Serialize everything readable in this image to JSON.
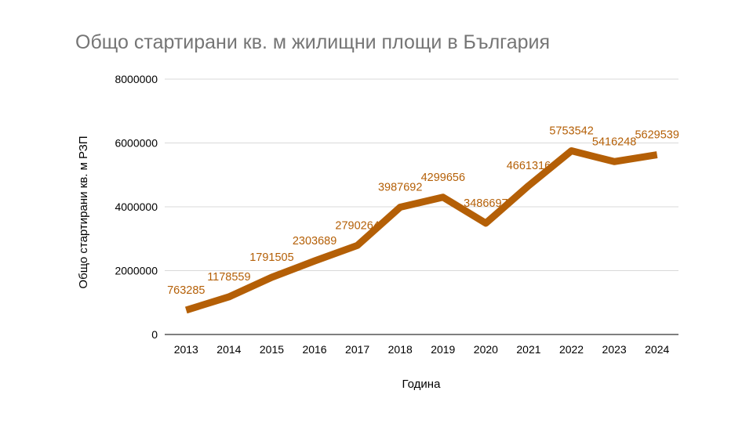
{
  "chart_data": {
    "type": "line",
    "title": "Общо стартирани кв. м жилищни площи в България",
    "xlabel": "Година",
    "ylabel": "Общо стартирани кв. м РЗП",
    "categories": [
      "2013",
      "2014",
      "2015",
      "2016",
      "2017",
      "2018",
      "2019",
      "2020",
      "2021",
      "2022",
      "2023",
      "2024"
    ],
    "series": [
      {
        "values": [
          763285,
          1178559,
          1791505,
          2303689,
          2790264,
          3987692,
          4299656,
          3486697,
          4661316,
          5753542,
          5416248,
          5629539
        ],
        "color": "#b45f06"
      }
    ],
    "ylim": [
      0,
      8000000
    ],
    "yticks": [
      0,
      2000000,
      4000000,
      6000000,
      8000000
    ],
    "grid": true,
    "legend": "none",
    "data_labels": true,
    "colors": {
      "line": "#b45f06",
      "data_label": "#b45f06",
      "grid": "#d9d9d9",
      "title": "#757575",
      "axis_text": "#000000"
    }
  }
}
